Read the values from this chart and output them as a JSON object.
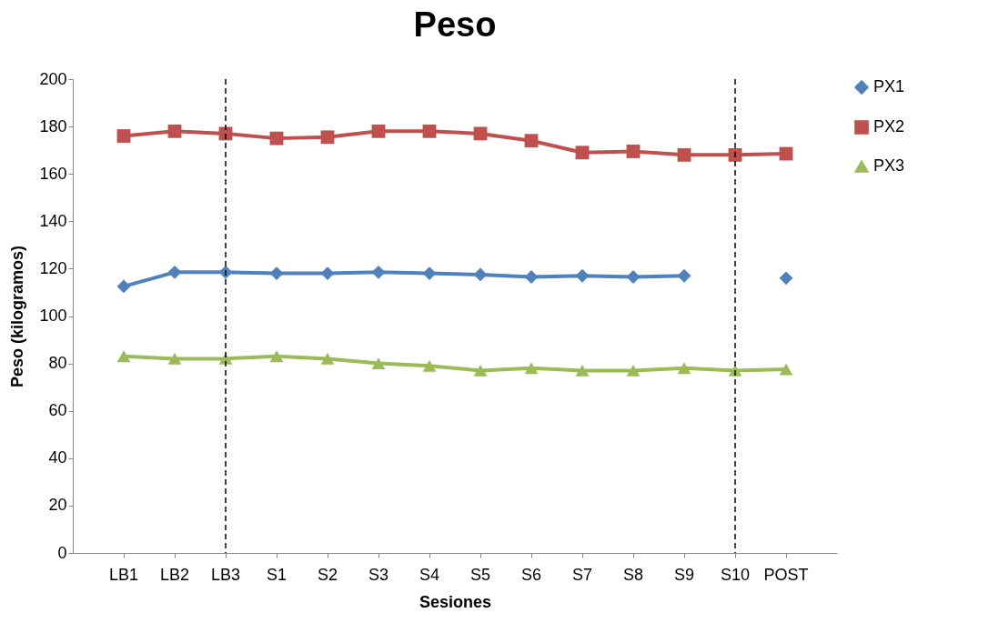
{
  "chart_data": {
    "type": "line",
    "title": "Peso",
    "xlabel": "Sesiones",
    "ylabel": "Peso (kilogramos)",
    "categories": [
      "LB1",
      "LB2",
      "LB3",
      "S1",
      "S2",
      "S3",
      "S4",
      "S5",
      "S6",
      "S7",
      "S8",
      "S9",
      "S10",
      "POST"
    ],
    "series": [
      {
        "name": "PX1",
        "color": "#4f81bd",
        "marker": "diamond",
        "values": [
          112.5,
          118.5,
          118.5,
          118,
          118,
          118.5,
          118,
          117.5,
          116.5,
          117,
          116.5,
          117,
          null,
          116
        ]
      },
      {
        "name": "PX2",
        "color": "#c0504d",
        "marker": "square",
        "values": [
          176,
          178,
          177,
          175,
          175.5,
          178,
          178,
          177,
          174,
          169,
          169.5,
          168,
          168,
          168.5
        ]
      },
      {
        "name": "PX3",
        "color": "#9bbb59",
        "marker": "triangle",
        "values": [
          83,
          82,
          82,
          83,
          82,
          80,
          79,
          77,
          78,
          77,
          77,
          78,
          77,
          77.5
        ]
      }
    ],
    "ylim": [
      0,
      200
    ],
    "yticks": [
      0,
      20,
      40,
      60,
      80,
      100,
      120,
      140,
      160,
      180,
      200
    ],
    "grid": false,
    "legend": "right",
    "ref_lines": [
      {
        "axis": "x",
        "value": "LB3",
        "color": "#000000",
        "line_style": "dashed"
      },
      {
        "axis": "x",
        "value": "S10",
        "color": "#000000",
        "line_style": "dashed"
      }
    ]
  }
}
